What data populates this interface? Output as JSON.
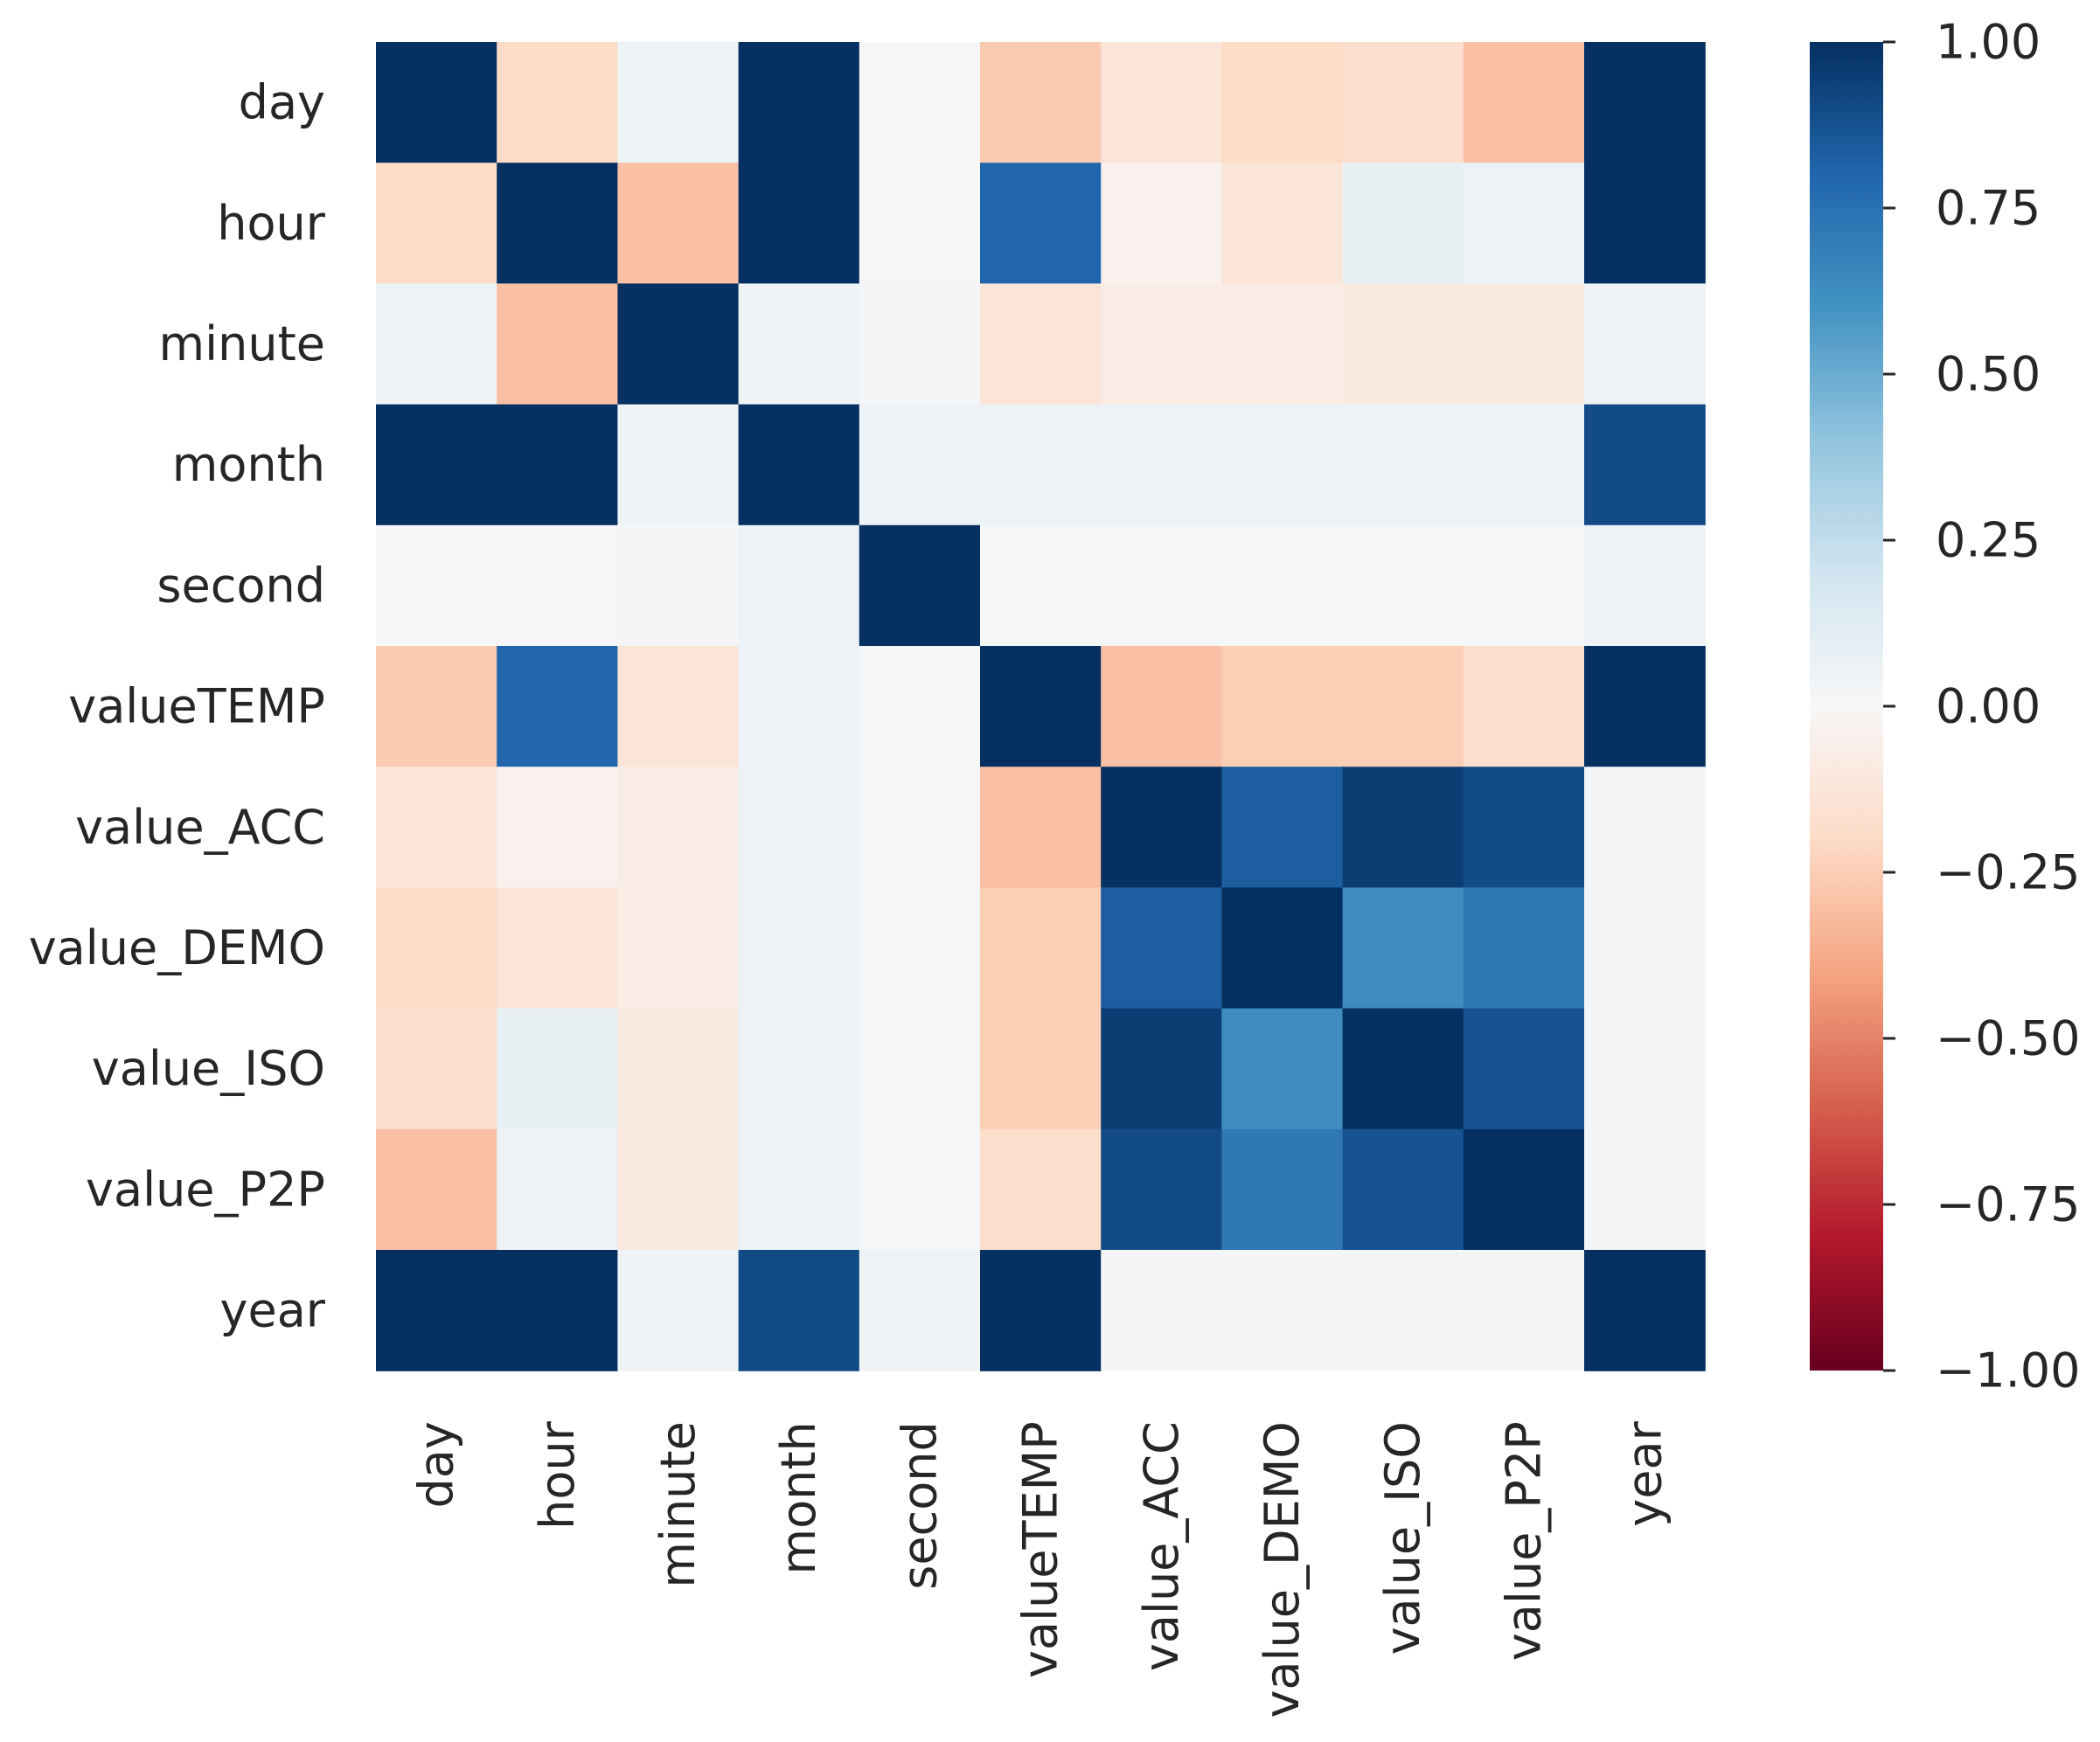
{
  "chart_data": {
    "type": "heatmap",
    "title": "",
    "xlabel": "",
    "ylabel": "",
    "rows": [
      "day",
      "hour",
      "minute",
      "month",
      "second",
      "valueTEMP",
      "value_ACC",
      "value_DEMO",
      "value_ISO",
      "value_P2P",
      "year"
    ],
    "columns": [
      "day",
      "hour",
      "minute",
      "month",
      "second",
      "valueTEMP",
      "value_ACC",
      "value_DEMO",
      "value_ISO",
      "value_P2P",
      "year"
    ],
    "values": [
      [
        1.0,
        -0.2,
        0.05,
        1.0,
        0.01,
        -0.26,
        -0.13,
        -0.2,
        -0.17,
        -0.3,
        1.0
      ],
      [
        -0.2,
        1.0,
        -0.3,
        1.0,
        0.01,
        0.8,
        -0.04,
        -0.13,
        0.08,
        0.06,
        1.0
      ],
      [
        0.05,
        -0.3,
        1.0,
        0.05,
        0.02,
        -0.13,
        -0.08,
        -0.08,
        -0.09,
        -0.1,
        0.05
      ],
      [
        1.0,
        1.0,
        0.05,
        1.0,
        0.06,
        0.06,
        0.06,
        0.06,
        0.06,
        0.06,
        0.9
      ],
      [
        0.01,
        0.01,
        0.02,
        0.06,
        1.0,
        0.01,
        0.01,
        0.01,
        0.01,
        0.01,
        0.05
      ],
      [
        -0.26,
        0.8,
        -0.13,
        0.06,
        0.01,
        1.0,
        -0.3,
        -0.25,
        -0.25,
        -0.18,
        1.0
      ],
      [
        -0.13,
        -0.04,
        -0.08,
        0.06,
        0.01,
        -0.3,
        1.0,
        0.83,
        0.95,
        0.9,
        0.02
      ],
      [
        -0.2,
        -0.13,
        -0.08,
        0.06,
        0.01,
        -0.25,
        0.83,
        1.0,
        0.63,
        0.72,
        0.02
      ],
      [
        -0.17,
        0.08,
        -0.09,
        0.06,
        0.01,
        -0.25,
        0.95,
        0.63,
        1.0,
        0.87,
        0.02
      ],
      [
        -0.3,
        0.06,
        -0.1,
        0.06,
        0.01,
        -0.18,
        0.9,
        0.72,
        0.87,
        1.0,
        0.02
      ],
      [
        1.0,
        1.0,
        0.05,
        0.9,
        0.05,
        1.0,
        0.02,
        0.02,
        0.02,
        0.02,
        1.0
      ]
    ],
    "colormap": "RdBu",
    "colors": {
      "stops": [
        "#67001f",
        "#b2182b",
        "#d6604d",
        "#f4a582",
        "#fddbc7",
        "#f7f7f7",
        "#d1e5f0",
        "#92c5de",
        "#4393c3",
        "#2166ac",
        "#053061"
      ]
    },
    "vmin": -1.0,
    "vmax": 1.0,
    "colorbar": {
      "ticks": [
        1.0,
        0.75,
        0.5,
        0.25,
        0.0,
        -0.25,
        -0.5,
        -0.75,
        -1.0
      ],
      "tick_labels": [
        "1.00",
        "0.75",
        "0.50",
        "0.25",
        "0.00",
        "−0.25",
        "−0.50",
        "−0.75",
        "−1.00"
      ]
    }
  }
}
